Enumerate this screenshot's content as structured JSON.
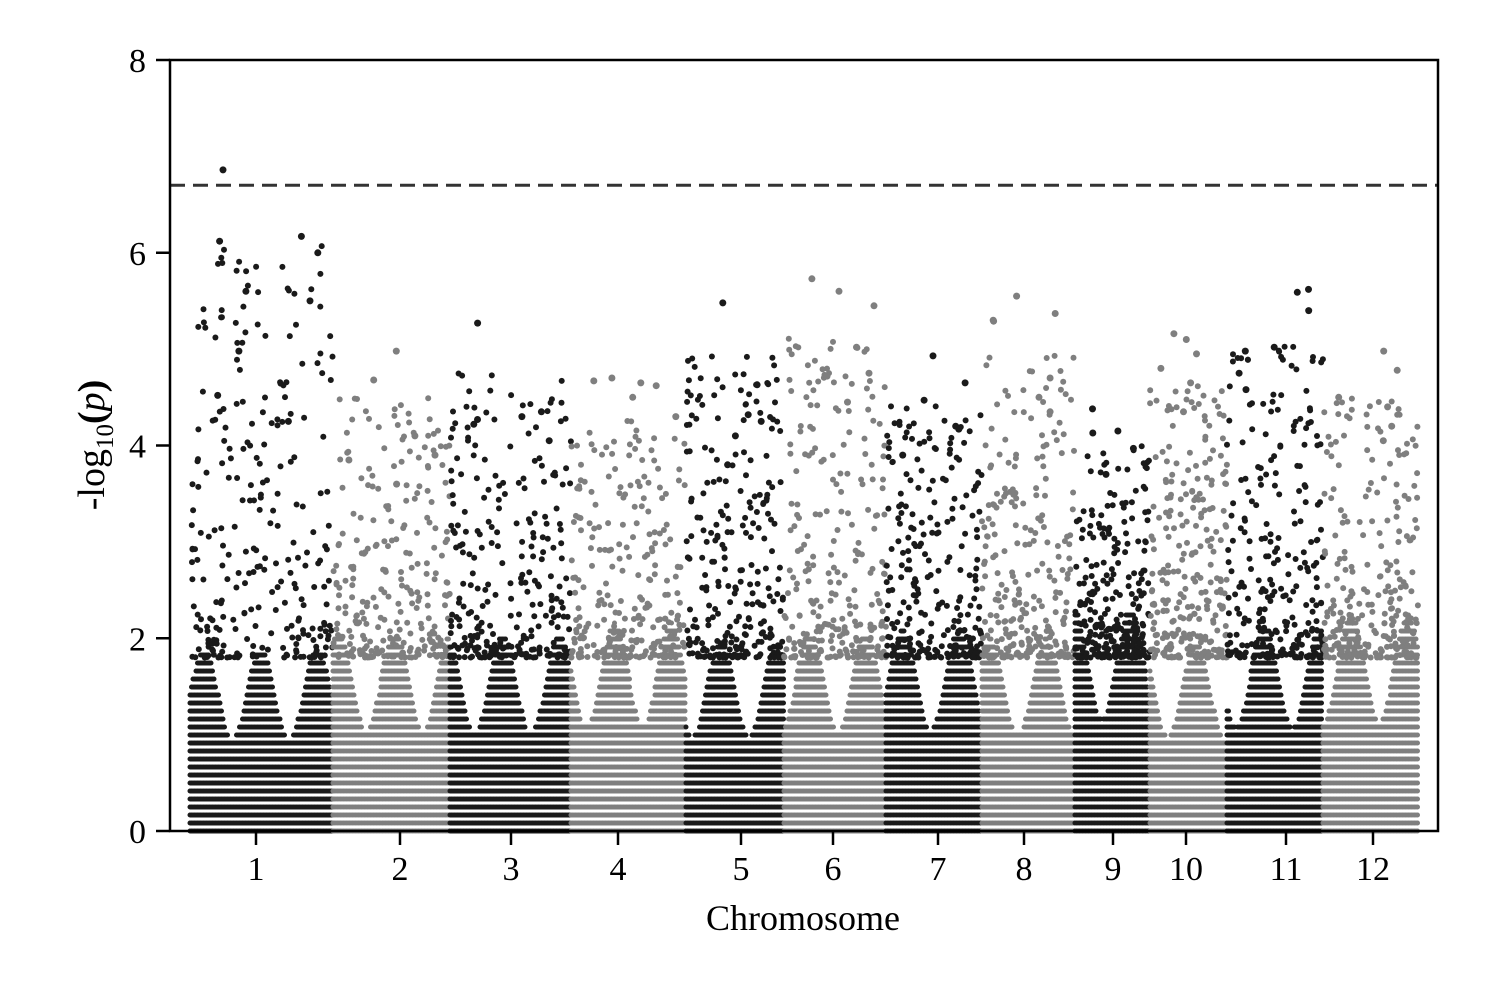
{
  "chart_data": {
    "type": "scatter",
    "subtype": "manhattan",
    "xlabel": "Chromosome",
    "ylabel": {
      "prefix": "-log",
      "subscript": "10",
      "open": "(",
      "variable": "p",
      "close": ")"
    },
    "ylim": [
      0,
      8
    ],
    "yticks": [
      0,
      2,
      4,
      6,
      8
    ],
    "threshold": 6.7,
    "threshold_style": "dashed",
    "grid": false,
    "legend": "none",
    "colors": {
      "odd": "#1a1a1a",
      "even": "#7f7f7f",
      "threshold": "#333333"
    },
    "chromosomes": [
      {
        "label": "1",
        "peak": 6.86,
        "top_points": [
          6.86,
          6.17,
          6.12,
          6.0,
          5.6,
          5.5,
          4.98,
          4.52,
          4.25
        ]
      },
      {
        "label": "2",
        "peak": 4.98,
        "top_points": [
          4.98,
          4.68,
          4.1,
          3.9,
          3.85,
          3.6
        ]
      },
      {
        "label": "3",
        "peak": 5.27,
        "top_points": [
          5.27,
          4.35,
          4.3,
          4.27,
          4.22,
          4.05
        ]
      },
      {
        "label": "4",
        "peak": 4.7,
        "top_points": [
          4.7,
          4.67,
          4.65,
          4.62,
          4.5,
          4.3
        ]
      },
      {
        "label": "5",
        "peak": 5.48,
        "top_points": [
          5.48,
          4.63,
          4.32,
          4.25,
          4.1,
          3.8
        ]
      },
      {
        "label": "6",
        "peak": 5.73,
        "top_points": [
          5.73,
          5.6,
          5.45,
          5.02,
          4.75,
          4.72,
          4.45
        ]
      },
      {
        "label": "7",
        "peak": 4.93,
        "top_points": [
          4.93,
          4.65,
          4.47,
          4.2,
          4.17,
          3.9
        ]
      },
      {
        "label": "8",
        "peak": 5.55,
        "top_points": [
          5.55,
          5.37,
          5.3,
          5.29,
          4.7,
          4.5,
          4.35
        ]
      },
      {
        "label": "9",
        "peak": 4.38,
        "top_points": [
          4.38,
          4.15,
          4.13,
          3.97,
          3.7
        ]
      },
      {
        "label": "10",
        "peak": 5.16,
        "top_points": [
          5.16,
          5.1,
          4.95,
          4.8,
          4.65,
          4.35
        ]
      },
      {
        "label": "11",
        "peak": 5.62,
        "top_points": [
          5.62,
          5.59,
          5.4,
          5.02,
          4.98,
          4.75,
          4.58
        ]
      },
      {
        "label": "12",
        "peak": 4.98,
        "top_points": [
          4.98,
          4.78,
          4.5,
          4.4,
          4.2,
          4.05
        ]
      }
    ]
  }
}
